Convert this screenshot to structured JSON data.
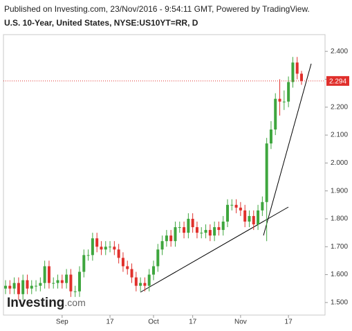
{
  "chart_data": {
    "type": "candlestick",
    "published": "Published on Investing.com, 23/Nov/2016 - 9:54:11 GMT, Powered by TradingView.",
    "title": "U.S. 10-Year, United States, NYSE:US10YT=RR, D",
    "watermark": [
      "Investing",
      ".com"
    ],
    "categories": [
      null,
      null,
      null,
      null,
      null,
      null,
      null,
      null,
      null,
      null,
      null,
      null,
      null,
      "Sep",
      null,
      null,
      null,
      null,
      null,
      null,
      null,
      null,
      null,
      null,
      "17",
      null,
      null,
      null,
      null,
      null,
      null,
      null,
      null,
      null,
      "Oct",
      null,
      null,
      null,
      null,
      null,
      null,
      null,
      null,
      "17",
      null,
      null,
      null,
      null,
      null,
      null,
      null,
      null,
      null,
      null,
      "Nov",
      null,
      null,
      null,
      null,
      null,
      null,
      null,
      null,
      null,
      null,
      "17",
      null,
      null,
      null
    ],
    "open": [
      1.55,
      1.56,
      1.55,
      1.57,
      1.53,
      1.58,
      1.55,
      1.56,
      1.56,
      1.57,
      1.63,
      1.57,
      1.57,
      1.58,
      1.57,
      1.6,
      1.54,
      1.54,
      1.61,
      1.67,
      1.67,
      1.73,
      1.7,
      1.69,
      1.7,
      1.7,
      1.69,
      1.66,
      1.63,
      1.62,
      1.59,
      1.56,
      1.57,
      1.56,
      1.6,
      1.63,
      1.69,
      1.72,
      1.74,
      1.72,
      1.77,
      1.77,
      1.75,
      1.8,
      1.77,
      1.75,
      1.75,
      1.76,
      1.74,
      1.77,
      1.76,
      1.79,
      1.85,
      1.85,
      1.84,
      1.83,
      1.79,
      1.81,
      1.78,
      1.83,
      1.86,
      2.07,
      2.12,
      2.23,
      2.22,
      2.22,
      2.29,
      2.36,
      2.32
    ],
    "high": [
      1.58,
      1.58,
      1.59,
      1.59,
      1.6,
      1.6,
      1.58,
      1.58,
      1.59,
      1.65,
      1.65,
      1.59,
      1.6,
      1.6,
      1.62,
      1.62,
      1.56,
      1.63,
      1.69,
      1.69,
      1.75,
      1.75,
      1.72,
      1.72,
      1.72,
      1.72,
      1.71,
      1.68,
      1.65,
      1.64,
      1.61,
      1.59,
      1.59,
      1.62,
      1.65,
      1.71,
      1.74,
      1.76,
      1.76,
      1.79,
      1.79,
      1.79,
      1.82,
      1.82,
      1.79,
      1.77,
      1.78,
      1.78,
      1.79,
      1.79,
      1.81,
      1.87,
      1.87,
      1.87,
      1.86,
      1.85,
      1.83,
      1.83,
      1.85,
      1.88,
      2.09,
      2.15,
      2.25,
      2.3,
      2.26,
      2.31,
      2.38,
      2.38,
      2.33
    ],
    "low": [
      1.53,
      1.53,
      1.53,
      1.51,
      1.51,
      1.53,
      1.53,
      1.54,
      1.54,
      1.55,
      1.55,
      1.55,
      1.55,
      1.55,
      1.55,
      1.52,
      1.52,
      1.52,
      1.59,
      1.65,
      1.65,
      1.68,
      1.67,
      1.67,
      1.68,
      1.67,
      1.64,
      1.61,
      1.6,
      1.57,
      1.54,
      1.54,
      1.54,
      1.54,
      1.58,
      1.61,
      1.67,
      1.7,
      1.7,
      1.7,
      1.75,
      1.73,
      1.73,
      1.75,
      1.73,
      1.73,
      1.73,
      1.72,
      1.72,
      1.74,
      1.74,
      1.77,
      1.83,
      1.82,
      1.81,
      1.77,
      1.77,
      1.76,
      1.76,
      1.81,
      1.72,
      2.05,
      2.1,
      2.17,
      2.19,
      2.2,
      2.27,
      2.3,
      2.28
    ],
    "close": [
      1.56,
      1.55,
      1.57,
      1.53,
      1.58,
      1.55,
      1.56,
      1.56,
      1.57,
      1.63,
      1.57,
      1.57,
      1.58,
      1.57,
      1.6,
      1.54,
      1.54,
      1.61,
      1.67,
      1.67,
      1.73,
      1.7,
      1.69,
      1.7,
      1.7,
      1.69,
      1.66,
      1.63,
      1.62,
      1.59,
      1.56,
      1.57,
      1.56,
      1.6,
      1.63,
      1.69,
      1.72,
      1.74,
      1.72,
      1.77,
      1.77,
      1.75,
      1.8,
      1.77,
      1.75,
      1.75,
      1.76,
      1.74,
      1.77,
      1.76,
      1.79,
      1.85,
      1.85,
      1.84,
      1.83,
      1.79,
      1.81,
      1.78,
      1.83,
      1.86,
      2.07,
      2.12,
      2.23,
      2.22,
      2.22,
      2.29,
      2.36,
      2.32,
      2.294
    ],
    "up_color": "#3ea63e",
    "down_color": "#e0302c",
    "last_value": 2.294,
    "last_value_color": "#e0302c",
    "ylim": [
      1.455,
      2.46
    ],
    "yticks": [
      {
        "value": 1.5,
        "label": "1.500"
      },
      {
        "value": 1.6,
        "label": "1.600"
      },
      {
        "value": 1.7,
        "label": "1.700"
      },
      {
        "value": 1.8,
        "label": "1.800"
      },
      {
        "value": 1.9,
        "label": "1.900"
      },
      {
        "value": 2.0,
        "label": "2.000"
      },
      {
        "value": 2.1,
        "label": "2.100"
      },
      {
        "value": 2.2,
        "label": "2.200"
      },
      {
        "value": 2.3,
        "label": "2.300"
      },
      {
        "value": 2.4,
        "label": "2.400"
      }
    ],
    "grid": false
  }
}
